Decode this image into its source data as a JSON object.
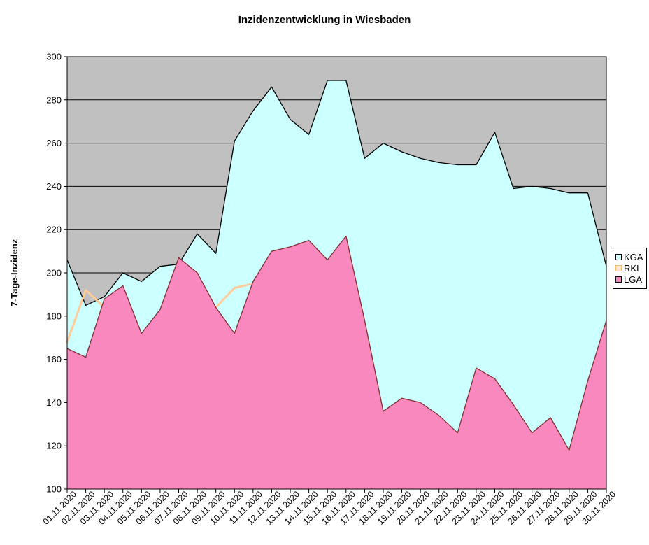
{
  "chart_data": {
    "type": "area",
    "title": "Inzidenzentwicklung in Wiesbaden",
    "ylabel": "7-Tage-Inzidenz",
    "xlabel": "",
    "ylim": [
      100,
      300
    ],
    "ytick_step": 20,
    "grid": true,
    "legend_position": "right",
    "plot_bg_color": "#C0C0C0",
    "categories": [
      "01.11.2020",
      "02.11.2020",
      "03.11.2020",
      "04.11.2020",
      "05.11.2020",
      "06.11.2020",
      "07.11.2020",
      "08.11.2020",
      "09.11.2020",
      "10.11.2020",
      "11.11.2020",
      "12.11.2020",
      "13.11.2020",
      "14.11.2020",
      "15.11.2020",
      "16.11.2020",
      "17.11.2020",
      "18.11.2020",
      "19.11.2020",
      "20.11.2020",
      "21.11.2020",
      "22.11.2020",
      "23.11.2020",
      "24.11.2020",
      "25.11.2020",
      "26.11.2020",
      "27.11.2020",
      "28.11.2020",
      "29.11.2020",
      "30.11.2020"
    ],
    "series": [
      {
        "name": "KGA",
        "render": "area",
        "fill": "#CCFFFF",
        "stroke": "#000000",
        "values": [
          206,
          185,
          189,
          200,
          196,
          203,
          204,
          218,
          209,
          261,
          275,
          286,
          271,
          264,
          289,
          289,
          253,
          260,
          256,
          253,
          251,
          250,
          250,
          265,
          239,
          240,
          239,
          237,
          237,
          203
        ]
      },
      {
        "name": "RKI",
        "render": "line",
        "stroke": "#FFCC99",
        "values": [
          168,
          192,
          184,
          null,
          null,
          null,
          null,
          null,
          184,
          193,
          195,
          null,
          null,
          null,
          null,
          null,
          null,
          null,
          null,
          null,
          null,
          null,
          null,
          null,
          null,
          null,
          null,
          null,
          null,
          null
        ]
      },
      {
        "name": "LGA",
        "render": "area",
        "fill": "#F988BF",
        "stroke": "#802E2E",
        "values": [
          165,
          161,
          188,
          194,
          172,
          183,
          207,
          200,
          184,
          172,
          196,
          210,
          212,
          215,
          206,
          217,
          178,
          136,
          142,
          140,
          134,
          126,
          156,
          151,
          139,
          126,
          133,
          118,
          150,
          178
        ]
      }
    ],
    "legend": [
      {
        "label": "KGA",
        "swatch_fill": "#CCFFFF",
        "swatch_border": "#000000"
      },
      {
        "label": "RKI",
        "swatch_fill": "#FFE7CE",
        "swatch_border": "#F5B873"
      },
      {
        "label": "LGA",
        "swatch_fill": "#F988BF",
        "swatch_border": "#000000"
      }
    ]
  }
}
